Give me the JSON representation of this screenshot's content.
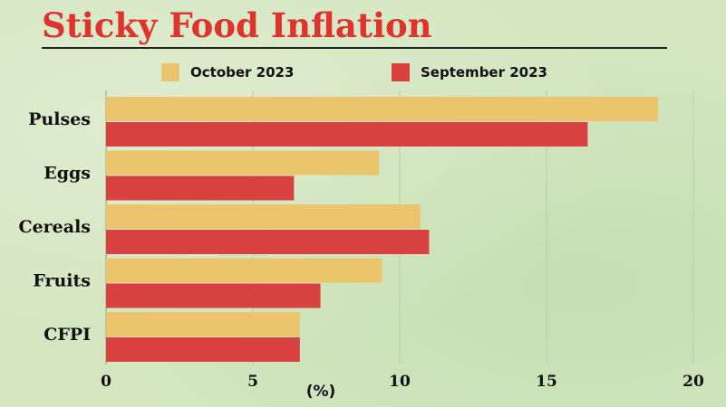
{
  "chart_data": {
    "type": "bar",
    "orientation": "horizontal",
    "title": "Sticky Food Inflation",
    "xlabel": "(%)",
    "ylabel": "",
    "categories": [
      "Pulses",
      "Eggs",
      "Cereals",
      "Fruits",
      "CFPI"
    ],
    "series": [
      {
        "name": "October 2023",
        "color": "#edc46e",
        "values": [
          18.8,
          9.3,
          10.7,
          9.4,
          6.6
        ]
      },
      {
        "name": "September 2023",
        "color": "#d94141",
        "values": [
          16.4,
          6.4,
          11.0,
          7.3,
          6.6
        ]
      }
    ],
    "xlim": [
      0,
      20
    ],
    "xticks": [
      0,
      5,
      10,
      15,
      20
    ],
    "grid": true,
    "legend": "top"
  }
}
